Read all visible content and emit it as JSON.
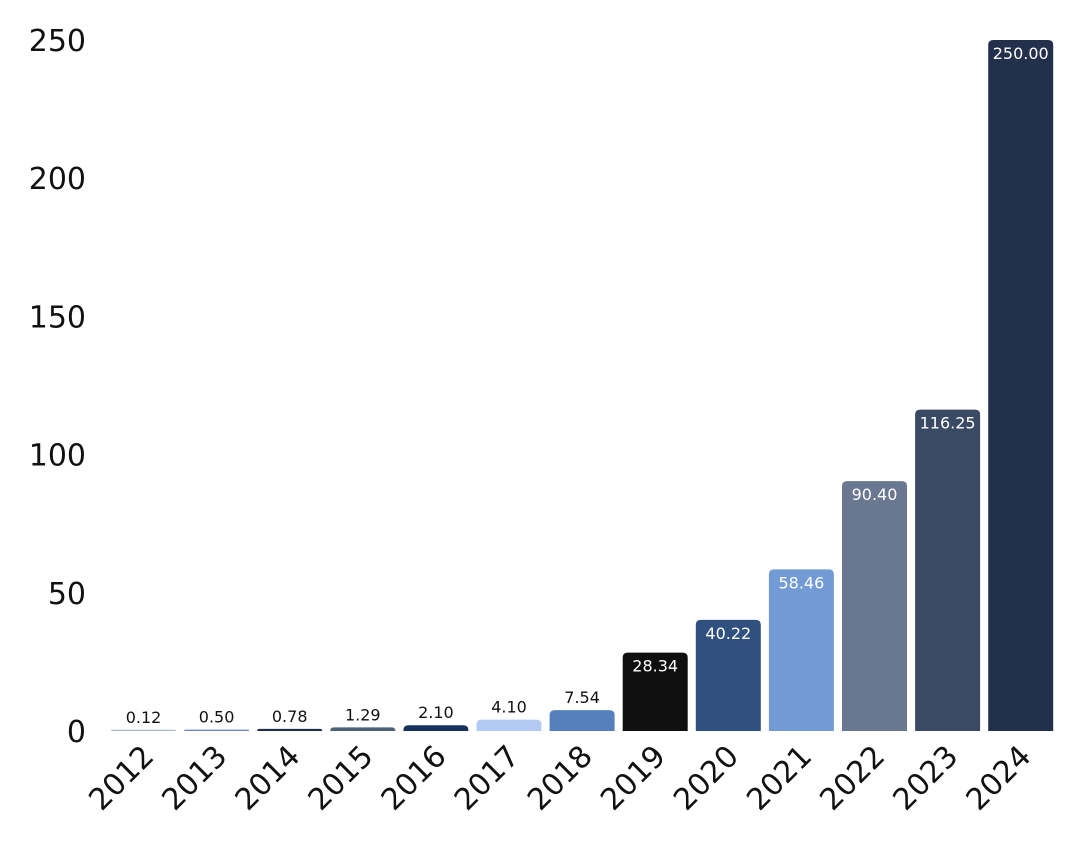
{
  "chart_data": {
    "type": "bar",
    "title": "",
    "xlabel": "",
    "ylabel": "",
    "categories": [
      "2012",
      "2013",
      "2014",
      "2015",
      "2016",
      "2017",
      "2018",
      "2019",
      "2020",
      "2021",
      "2022",
      "2023",
      "2024"
    ],
    "values": [
      0.12,
      0.5,
      0.78,
      1.29,
      2.1,
      4.1,
      7.54,
      28.34,
      40.22,
      58.46,
      90.4,
      116.25,
      250.0
    ],
    "data_labels": [
      "0.12",
      "0.50",
      "0.78",
      "1.29",
      "2.10",
      "4.10",
      "7.54",
      "28.34",
      "40.22",
      "58.46",
      "90.40",
      "116.25",
      "250.00"
    ],
    "colors": [
      "#aeb8c6",
      "#6b8cc7",
      "#1b2d4b",
      "#4f6178",
      "#16315e",
      "#b3cbf2",
      "#5580bd",
      "#0f0f10",
      "#30507f",
      "#729bd5",
      "#6a7790",
      "#3a4964",
      "#23304b"
    ],
    "y_ticks": [
      "0",
      "50",
      "100",
      "150",
      "200",
      "250"
    ],
    "ylim": [
      0,
      250
    ],
    "grid": false,
    "legend": "none"
  }
}
